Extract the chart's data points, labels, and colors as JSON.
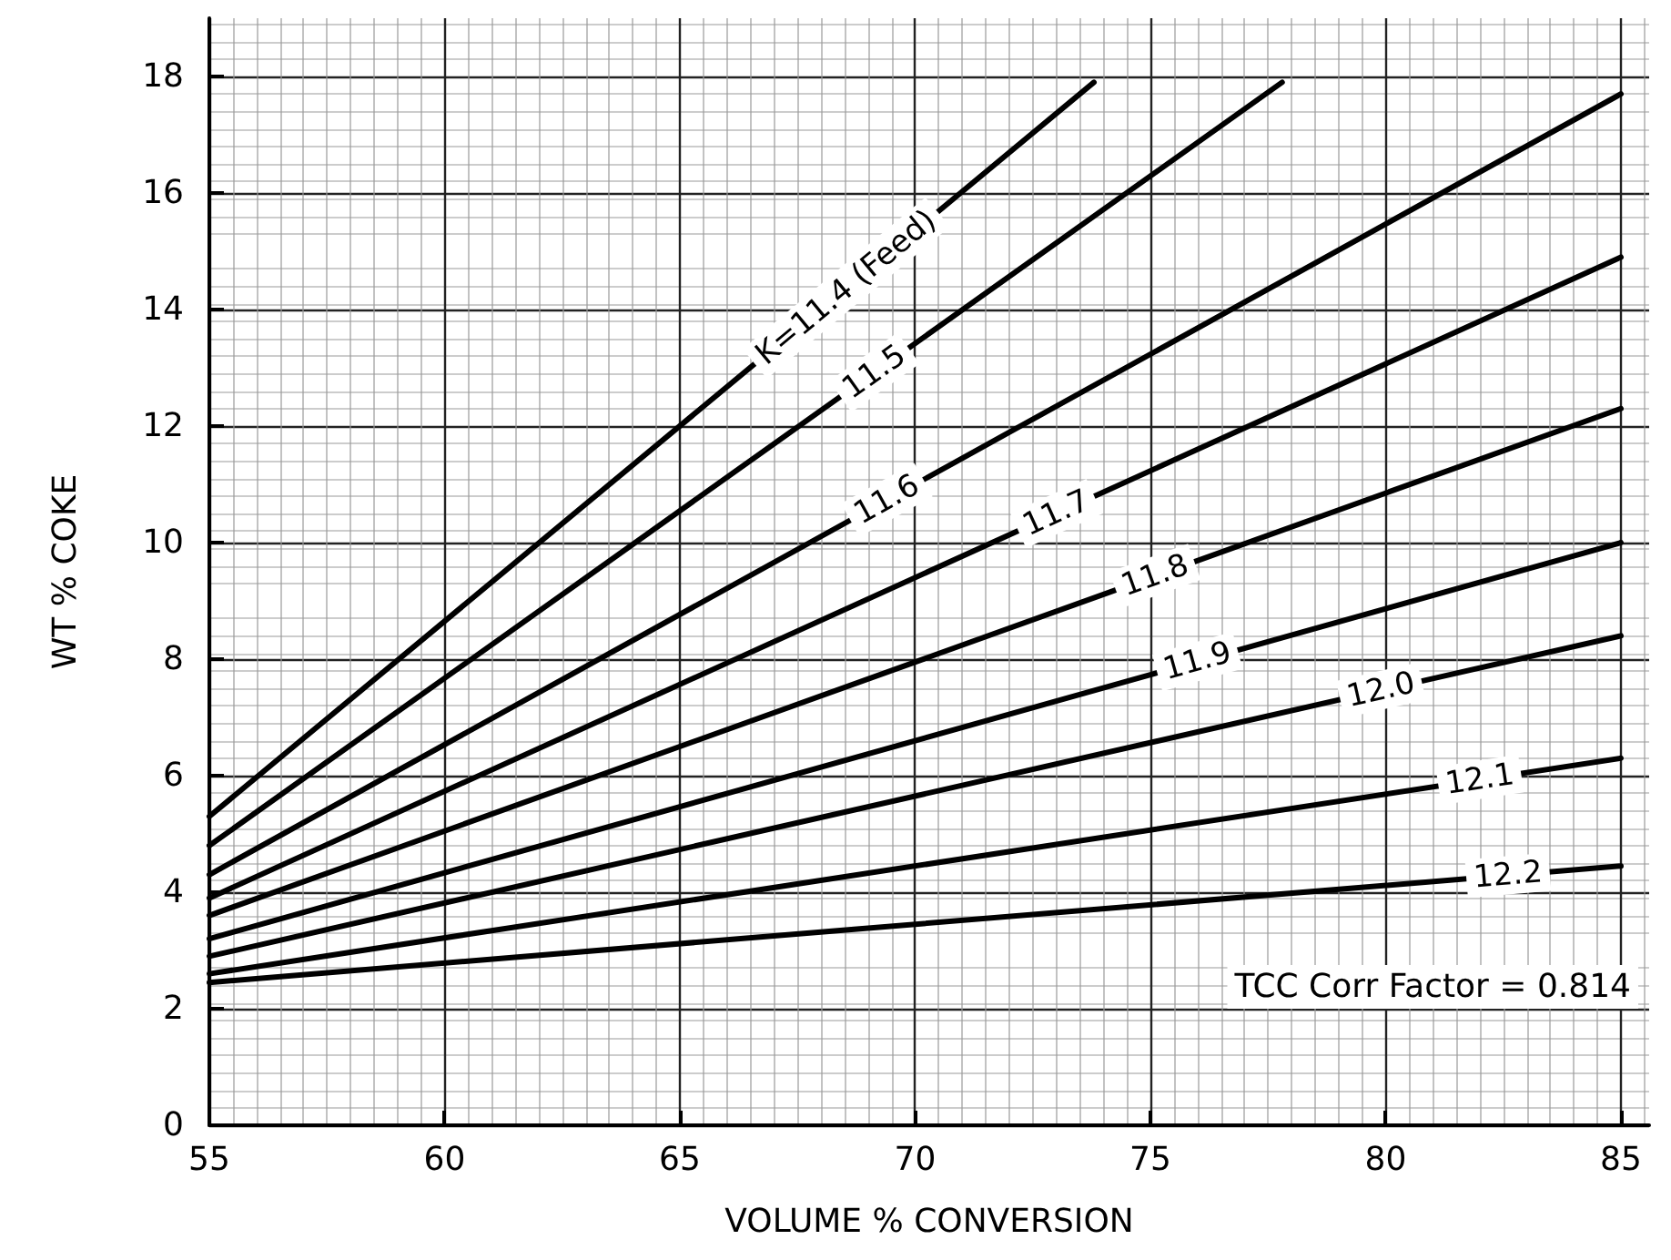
{
  "chart_data": {
    "type": "line",
    "xlabel": "VOLUME % CONVERSION",
    "ylabel": "WT % COKE",
    "xlim": [
      55,
      85.6
    ],
    "ylim": [
      0,
      19
    ],
    "xticks": [
      55,
      60,
      65,
      70,
      75,
      80,
      85
    ],
    "yticks": [
      0,
      2,
      4,
      6,
      8,
      10,
      12,
      14,
      16,
      18
    ],
    "grid": true,
    "legend": false,
    "marker": "none",
    "line_style": "solid",
    "annotations": [
      "TCC Corr Factor = 0.814"
    ],
    "series": [
      {
        "name": "K=11.4 (Feed)",
        "color": "#000000",
        "x": [
          55,
          73.8
        ],
        "values": [
          5.3,
          17.9
        ]
      },
      {
        "name": "11.5",
        "color": "#000000",
        "x": [
          55,
          77.8
        ],
        "values": [
          4.8,
          17.9
        ]
      },
      {
        "name": "11.6",
        "color": "#000000",
        "x": [
          55,
          85
        ],
        "values": [
          4.3,
          17.7
        ]
      },
      {
        "name": "11.7",
        "color": "#000000",
        "x": [
          55,
          85
        ],
        "values": [
          3.9,
          14.9
        ]
      },
      {
        "name": "11.8",
        "color": "#000000",
        "x": [
          55,
          85
        ],
        "values": [
          3.6,
          12.3
        ]
      },
      {
        "name": "11.9",
        "color": "#000000",
        "x": [
          55,
          85
        ],
        "values": [
          3.2,
          10.0
        ]
      },
      {
        "name": "12.0",
        "color": "#000000",
        "x": [
          55,
          85
        ],
        "values": [
          2.9,
          8.4
        ]
      },
      {
        "name": "12.1",
        "color": "#000000",
        "x": [
          55,
          85
        ],
        "values": [
          2.6,
          6.3
        ]
      },
      {
        "name": "12.2",
        "color": "#000000",
        "x": [
          55,
          85
        ],
        "values": [
          2.45,
          4.45
        ]
      }
    ]
  }
}
